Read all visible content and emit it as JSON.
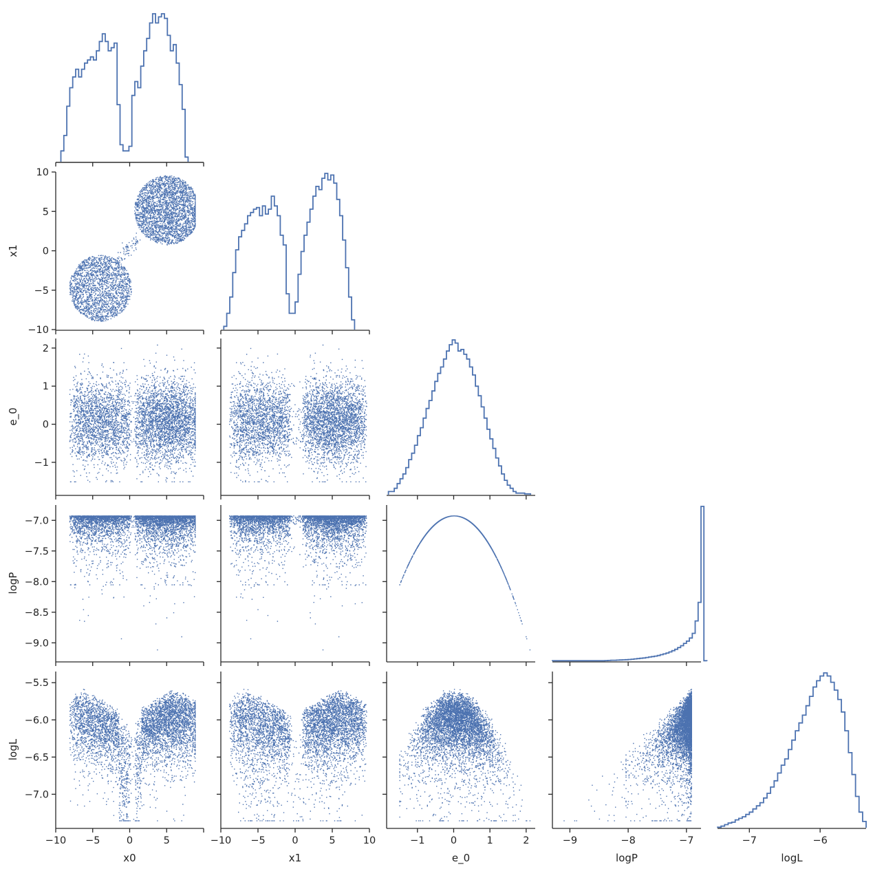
{
  "chart_data": {
    "type": "scatter",
    "subtype": "corner-pairplot",
    "title": "",
    "colors": {
      "series": "#4c72b0",
      "axis": "#262626",
      "text": "#222222",
      "background": "#ffffff"
    },
    "grid": false,
    "legend": "none",
    "variables": [
      "x0",
      "x1",
      "e_0",
      "logP",
      "logL"
    ],
    "axes": {
      "x0": {
        "label": "x0",
        "range": [
          -10,
          10
        ],
        "ticks": [
          -10,
          -5,
          0,
          5
        ],
        "tick_labels": [
          "−10",
          "−5",
          "0",
          "5"
        ]
      },
      "x1": {
        "label": "x1",
        "range": [
          -10,
          10
        ],
        "ticks": [
          -10,
          -5,
          0,
          5,
          10
        ],
        "tick_labels": [
          "−10",
          "−5",
          "0",
          "5",
          "10"
        ]
      },
      "e_0": {
        "label": "e_0",
        "range": [
          -1.85,
          2.25
        ],
        "ticks": [
          -1,
          0,
          1,
          2
        ],
        "tick_labels": [
          "−1",
          "0",
          "1",
          "2"
        ]
      },
      "logP": {
        "label": "logP",
        "range": [
          -9.3,
          -6.75
        ],
        "ticks": [
          -9.0,
          -8.5,
          -8.0,
          -7.5,
          -7.0
        ],
        "tick_labels": [
          "−9.0",
          "−8.5",
          "−8.0",
          "−7.5",
          "−7.0"
        ],
        "x_ticks": [
          -9,
          -8,
          -7
        ],
        "x_tick_labels": [
          "−9",
          "−8",
          "−7"
        ]
      },
      "logL": {
        "label": "logL",
        "range": [
          -7.45,
          -5.35
        ],
        "ticks": [
          -7.0,
          -6.5,
          -6.0,
          -5.5
        ],
        "tick_labels": [
          "−7.0",
          "−6.5",
          "−6.0",
          "−5.5"
        ],
        "x_ticks": [
          -7,
          -6
        ],
        "x_tick_labels": [
          "−7",
          "−6"
        ]
      }
    },
    "x_axis_labels": [
      "x0",
      "x1",
      "e_0",
      "logP",
      "logL"
    ],
    "y_axis_labels": [
      "x1",
      "e_0",
      "logP",
      "logL"
    ],
    "diagonal_histograms": [
      {
        "variable": "x0",
        "bin_start": -9.3,
        "bin_width": 0.4,
        "counts": [
          0.07,
          0.17,
          0.36,
          0.48,
          0.55,
          0.6,
          0.55,
          0.6,
          0.64,
          0.66,
          0.68,
          0.66,
          0.72,
          0.78,
          0.83,
          0.78,
          0.72,
          0.74,
          0.77,
          0.37,
          0.11,
          0.07,
          0.07,
          0.1,
          0.43,
          0.52,
          0.48,
          0.62,
          0.72,
          0.8,
          0.9,
          0.96,
          0.9,
          0.94,
          0.96,
          0.93,
          0.82,
          0.72,
          0.76,
          0.64,
          0.5,
          0.34,
          0.03
        ]
      },
      {
        "variable": "x1",
        "bin_start": -9.6,
        "bin_width": 0.4,
        "counts": [
          0.02,
          0.1,
          0.2,
          0.35,
          0.49,
          0.57,
          0.61,
          0.65,
          0.7,
          0.72,
          0.74,
          0.75,
          0.7,
          0.76,
          0.71,
          0.74,
          0.82,
          0.76,
          0.7,
          0.58,
          0.52,
          0.22,
          0.1,
          0.1,
          0.17,
          0.34,
          0.48,
          0.58,
          0.66,
          0.74,
          0.82,
          0.88,
          0.86,
          0.93,
          0.96,
          0.92,
          0.95,
          0.9,
          0.8,
          0.7,
          0.55,
          0.38,
          0.2,
          0.06
        ]
      },
      {
        "variable": "e_0",
        "bin_start": -1.8,
        "bin_width": 0.08,
        "counts": [
          0.02,
          0.02,
          0.04,
          0.07,
          0.1,
          0.13,
          0.17,
          0.22,
          0.26,
          0.31,
          0.37,
          0.42,
          0.48,
          0.54,
          0.59,
          0.65,
          0.71,
          0.76,
          0.8,
          0.85,
          0.9,
          0.94,
          0.97,
          0.95,
          0.9,
          0.91,
          0.88,
          0.85,
          0.8,
          0.75,
          0.68,
          0.62,
          0.55,
          0.48,
          0.41,
          0.35,
          0.29,
          0.23,
          0.18,
          0.13,
          0.09,
          0.06,
          0.04,
          0.02,
          0.01,
          0.01,
          0.01,
          0.005,
          0.005
        ]
      },
      {
        "variable": "logP",
        "bin_start": -9.3,
        "bin_width": 0.05,
        "counts": [
          0.003,
          0.003,
          0.003,
          0.003,
          0.003,
          0.003,
          0.003,
          0.003,
          0.003,
          0.003,
          0.003,
          0.003,
          0.003,
          0.003,
          0.003,
          0.003,
          0.003,
          0.003,
          0.004,
          0.005,
          0.006,
          0.006,
          0.007,
          0.008,
          0.009,
          0.01,
          0.011,
          0.013,
          0.015,
          0.017,
          0.019,
          0.021,
          0.024,
          0.027,
          0.03,
          0.033,
          0.037,
          0.042,
          0.047,
          0.053,
          0.06,
          0.068,
          0.077,
          0.088,
          0.1,
          0.115,
          0.13,
          0.15,
          0.18,
          0.26,
          0.38,
          1.0,
          0.003
        ]
      },
      {
        "variable": "logL",
        "bin_start": -7.45,
        "bin_width": 0.05,
        "counts": [
          0.003,
          0.01,
          0.02,
          0.03,
          0.035,
          0.05,
          0.06,
          0.07,
          0.085,
          0.1,
          0.12,
          0.14,
          0.16,
          0.19,
          0.22,
          0.26,
          0.3,
          0.35,
          0.4,
          0.44,
          0.5,
          0.56,
          0.62,
          0.67,
          0.72,
          0.78,
          0.84,
          0.9,
          0.94,
          0.97,
          0.99,
          0.97,
          0.93,
          0.88,
          0.82,
          0.74,
          0.62,
          0.48,
          0.34,
          0.2,
          0.1,
          0.04
        ]
      }
    ],
    "scatter_points_per_panel": 5000,
    "scatter_panels": [
      {
        "x": "x0",
        "y": "x1"
      },
      {
        "x": "x0",
        "y": "e_0"
      },
      {
        "x": "x1",
        "y": "e_0"
      },
      {
        "x": "x0",
        "y": "logP"
      },
      {
        "x": "x1",
        "y": "logP"
      },
      {
        "x": "e_0",
        "y": "logP"
      },
      {
        "x": "x0",
        "y": "logL"
      },
      {
        "x": "x1",
        "y": "logL"
      },
      {
        "x": "e_0",
        "y": "logL"
      },
      {
        "x": "logP",
        "y": "logL"
      }
    ]
  }
}
